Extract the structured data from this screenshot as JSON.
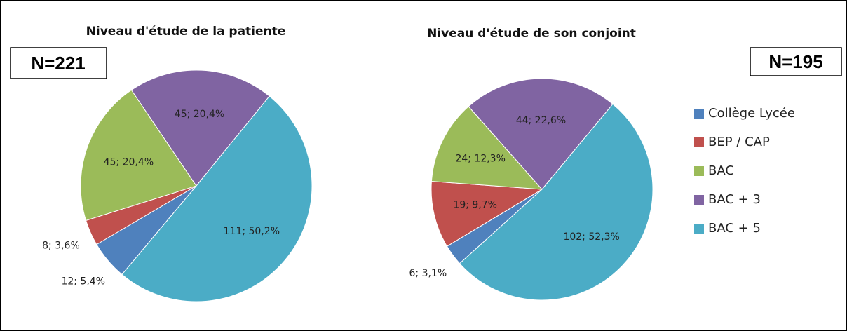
{
  "chart_data": [
    {
      "type": "pie",
      "title": "Niveau d'étude de la patiente",
      "annotation": "N=221",
      "categories": [
        "Collège Lycée",
        "BEP / CAP",
        "BAC",
        "BAC + 3",
        "BAC + 5"
      ],
      "values": [
        12,
        8,
        45,
        45,
        111
      ],
      "value_labels": [
        "12; 5,4%",
        "8; 3,6%",
        "45; 20,4%",
        "45; 20,4%",
        "111; 50,2%"
      ],
      "colors": [
        "#4f81bd",
        "#c0504d",
        "#9bbb59",
        "#8064a2",
        "#4bacc6"
      ]
    },
    {
      "type": "pie",
      "title": "Niveau d'étude de son conjoint",
      "annotation": "N=195",
      "categories": [
        "Collège Lycée",
        "BEP / CAP",
        "BAC",
        "BAC + 3",
        "BAC + 5"
      ],
      "values": [
        6,
        19,
        24,
        44,
        102
      ],
      "value_labels": [
        "6; 3,1%",
        "19; 9,7%",
        "24; 12,3%",
        "44; 22,6%",
        "102; 52,3%"
      ],
      "colors": [
        "#4f81bd",
        "#c0504d",
        "#9bbb59",
        "#8064a2",
        "#4bacc6"
      ],
      "legend": "right"
    }
  ]
}
